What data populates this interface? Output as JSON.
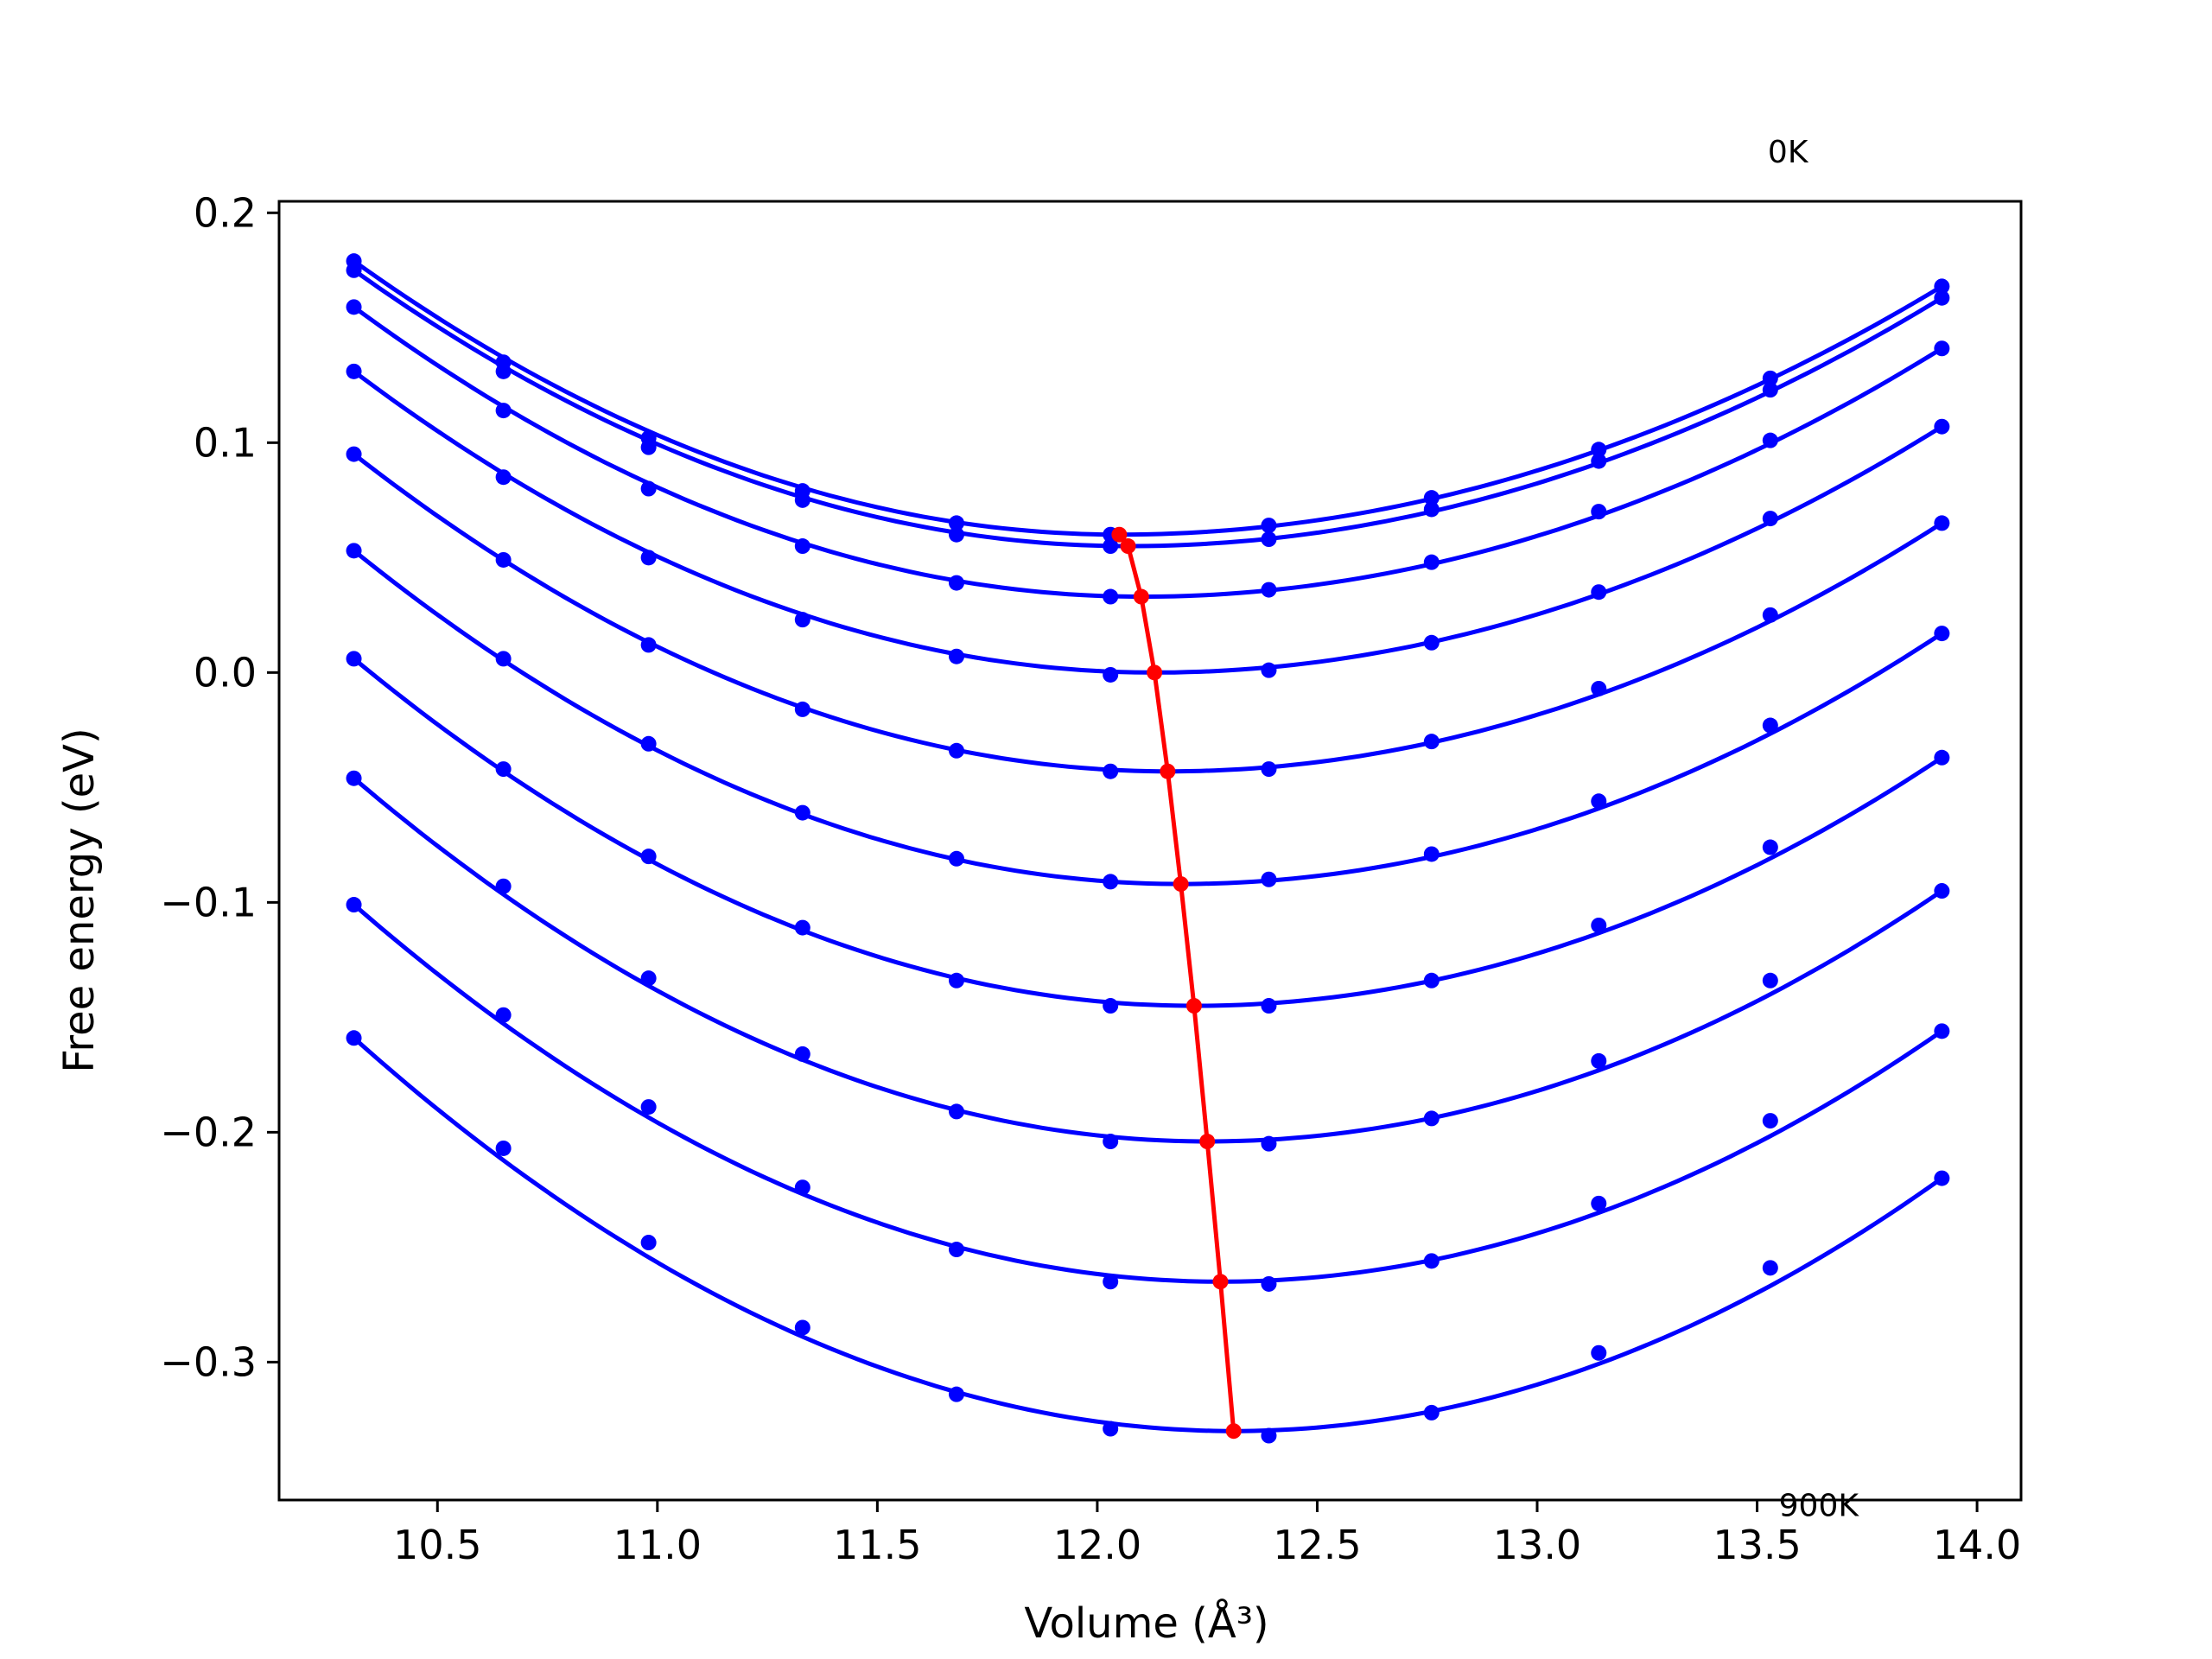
{
  "chart_data": {
    "type": "line",
    "title": "",
    "xlabel": "Volume (Å³)",
    "ylabel": "Free energy (eV)",
    "xlim": [
      10.14,
      14.1
    ],
    "ylim": [
      -0.36,
      0.205
    ],
    "xticks": [
      10.5,
      11.0,
      11.5,
      12.0,
      12.5,
      13.0,
      13.5,
      14.0
    ],
    "xtick_labels": [
      "10.5",
      "11.0",
      "11.5",
      "12.0",
      "12.5",
      "13.0",
      "13.5",
      "14.0"
    ],
    "yticks": [
      0.2,
      0.1,
      0.0,
      -0.1,
      -0.2,
      -0.3
    ],
    "ytick_labels": [
      "0.2",
      "0.1",
      "0.0",
      "−0.1",
      "−0.2",
      "−0.3"
    ],
    "grid": false,
    "annotations": [
      {
        "text": "0K",
        "x": 13.57,
        "y": 0.222
      },
      {
        "text": "900K",
        "x": 13.64,
        "y": -0.367
      }
    ],
    "volumes": [
      10.31,
      10.65,
      10.98,
      11.33,
      11.68,
      12.03,
      12.39,
      12.76,
      13.14,
      13.53,
      13.92
    ],
    "series": [
      {
        "values": [
          0.179,
          0.135,
          0.102,
          0.079,
          0.065,
          0.06,
          0.064,
          0.076,
          0.097,
          0.128,
          0.168
        ],
        "fit_min": [
          12.05,
          0.06
        ],
        "color": "#0000ff"
      },
      {
        "values": [
          0.175,
          0.131,
          0.098,
          0.075,
          0.06,
          0.055,
          0.058,
          0.071,
          0.092,
          0.123,
          0.163
        ],
        "fit_min": [
          12.07,
          0.055
        ],
        "color": "#0000ff"
      },
      {
        "values": [
          0.159,
          0.114,
          0.08,
          0.055,
          0.039,
          0.033,
          0.036,
          0.048,
          0.07,
          0.101,
          0.141
        ],
        "fit_min": [
          12.1,
          0.033
        ],
        "color": "#0000ff"
      },
      {
        "values": [
          0.131,
          0.085,
          0.05,
          0.023,
          0.007,
          -0.001,
          0.001,
          0.013,
          0.035,
          0.067,
          0.107
        ],
        "fit_min": [
          12.13,
          0.0
        ],
        "color": "#0000ff"
      },
      {
        "values": [
          0.095,
          0.049,
          0.012,
          -0.016,
          -0.034,
          -0.043,
          -0.042,
          -0.03,
          -0.007,
          0.025,
          0.065
        ],
        "fit_min": [
          12.16,
          -0.043
        ],
        "color": "#0000ff"
      },
      {
        "values": [
          0.053,
          0.006,
          -0.031,
          -0.061,
          -0.081,
          -0.091,
          -0.09,
          -0.079,
          -0.056,
          -0.023,
          0.017
        ],
        "fit_min": [
          12.19,
          -0.092
        ],
        "color": "#0000ff"
      },
      {
        "values": [
          0.006,
          -0.042,
          -0.08,
          -0.111,
          -0.134,
          -0.145,
          -0.145,
          -0.134,
          -0.11,
          -0.076,
          -0.037
        ],
        "fit_min": [
          12.22,
          -0.145
        ],
        "color": "#0000ff"
      },
      {
        "values": [
          -0.046,
          -0.093,
          -0.133,
          -0.166,
          -0.191,
          -0.204,
          -0.205,
          -0.194,
          -0.169,
          -0.134,
          -0.095
        ],
        "fit_min": [
          12.25,
          -0.204
        ],
        "color": "#0000ff"
      },
      {
        "values": [
          -0.101,
          -0.149,
          -0.189,
          -0.224,
          -0.251,
          -0.265,
          -0.266,
          -0.256,
          -0.231,
          -0.195,
          -0.156
        ],
        "fit_min": [
          12.28,
          -0.265
        ],
        "color": "#0000ff"
      },
      {
        "values": [
          -0.159,
          -0.207,
          -0.248,
          -0.285,
          -0.314,
          -0.329,
          -0.332,
          -0.322,
          -0.296,
          -0.259,
          -0.22
        ],
        "fit_min": [
          12.31,
          -0.33
        ],
        "color": "#0000ff"
      }
    ],
    "minimum_path": {
      "x": [
        12.05,
        12.07,
        12.1,
        12.13,
        12.16,
        12.19,
        12.22,
        12.25,
        12.28,
        12.31
      ],
      "y": [
        0.06,
        0.055,
        0.033,
        0.0,
        -0.043,
        -0.092,
        -0.145,
        -0.204,
        -0.265,
        -0.33
      ],
      "color": "#ff0000"
    }
  }
}
